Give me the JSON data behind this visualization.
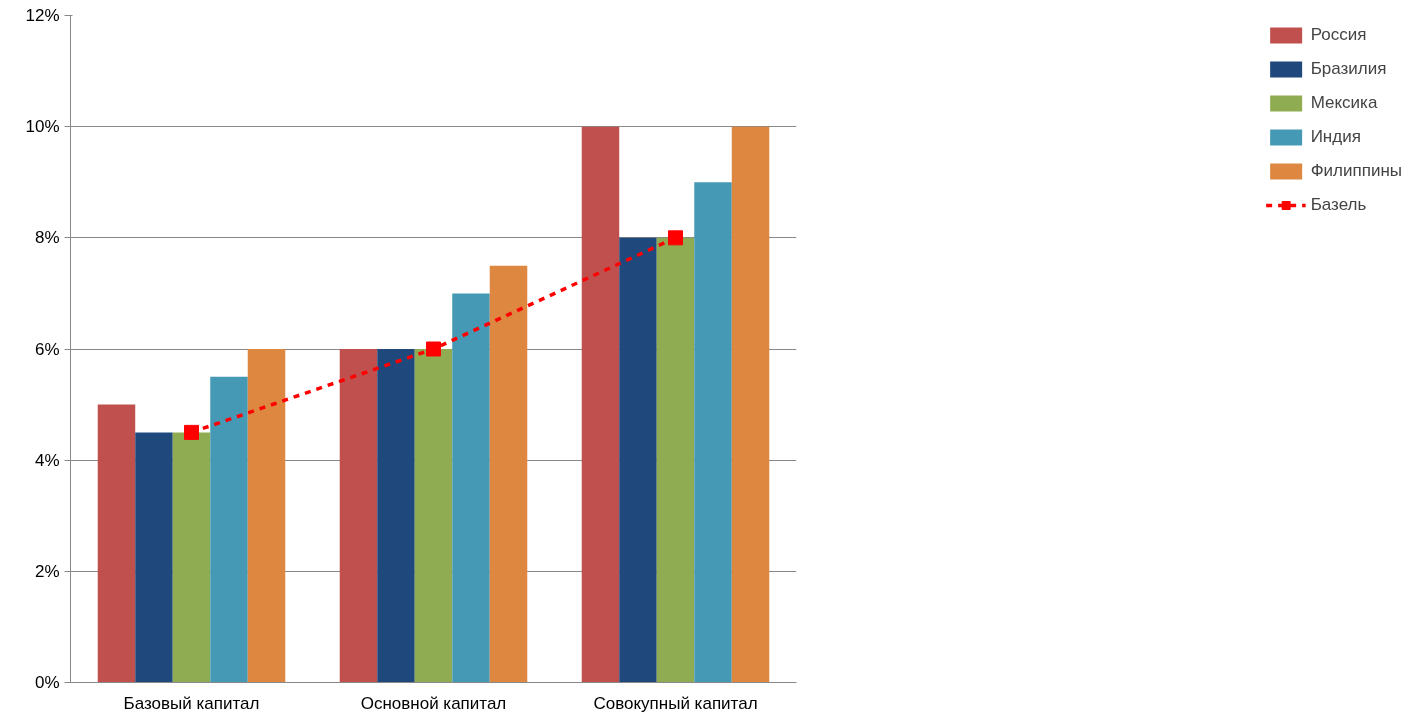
{
  "chart_data": {
    "type": "bar",
    "categories": [
      "Базовый капитал",
      "Основной капитал",
      "Совокупный капитал"
    ],
    "series": [
      {
        "name": "Россия",
        "color": "#c0504d",
        "values": [
          5,
          6,
          10
        ]
      },
      {
        "name": "Бразилия",
        "color": "#1f497d",
        "values": [
          4.5,
          6,
          8
        ]
      },
      {
        "name": "Мексика",
        "color": "#8fac52",
        "values": [
          4.5,
          6,
          8
        ]
      },
      {
        "name": "Индия",
        "color": "#4599b4",
        "values": [
          5.5,
          7,
          9
        ]
      },
      {
        "name": "Филиппины",
        "color": "#dd8740",
        "values": [
          6,
          7.5,
          10
        ]
      },
      {
        "name": "Базель",
        "type": "line",
        "color": "#ff0000",
        "values": [
          4.5,
          6,
          8
        ],
        "marker": "square",
        "line_style": "dashed"
      }
    ],
    "ylim": [
      0,
      12
    ],
    "yticks": [
      {
        "value": 0,
        "label": "0%"
      },
      {
        "value": 2,
        "label": "2%"
      },
      {
        "value": 4,
        "label": "4%"
      },
      {
        "value": 6,
        "label": "6%"
      },
      {
        "value": 8,
        "label": "8%"
      },
      {
        "value": 10,
        "label": "10%"
      },
      {
        "value": 12,
        "label": "12%"
      }
    ],
    "grid": "y",
    "legend": "right"
  }
}
